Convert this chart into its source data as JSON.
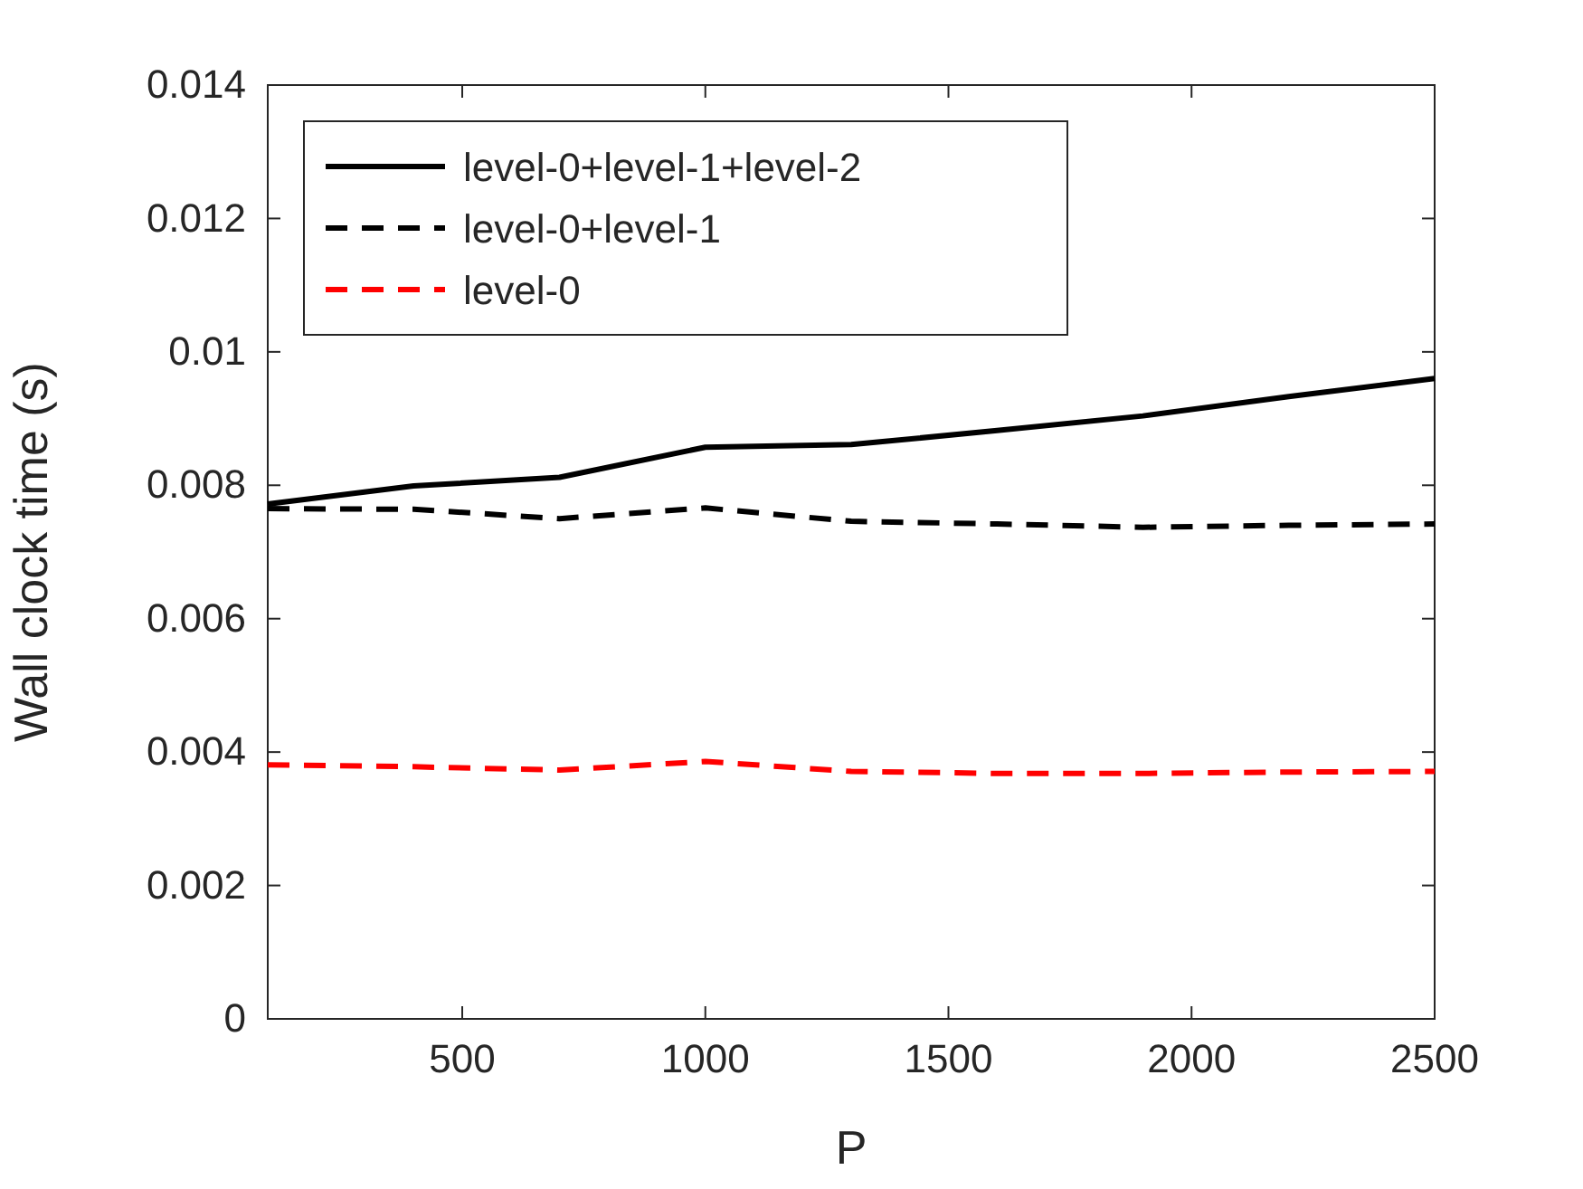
{
  "chart_data": {
    "type": "line",
    "xlabel": "P",
    "ylabel": "Wall clock time (s)",
    "x": [
      100,
      400,
      700,
      1000,
      1300,
      1600,
      1900,
      2200,
      2500
    ],
    "xlim": [
      100,
      2500
    ],
    "xticks": [
      500,
      1000,
      1500,
      2000,
      2500
    ],
    "ylim": [
      0,
      0.014
    ],
    "yticks": [
      0,
      0.002,
      0.004,
      0.006,
      0.008,
      0.01,
      0.012,
      0.014
    ],
    "legend": "top left",
    "grid": false,
    "series": [
      {
        "name": "level-0+level-1+level-2",
        "color": "#000000",
        "line_style": "solid",
        "values": [
          0.00772,
          0.00799,
          0.00812,
          0.00857,
          0.00861,
          0.00882,
          0.00904,
          0.00933,
          0.0096
        ]
      },
      {
        "name": "level-0+level-1",
        "color": "#000000",
        "line_style": "dashed",
        "values": [
          0.00765,
          0.00764,
          0.0075,
          0.00766,
          0.00746,
          0.00742,
          0.00737,
          0.0074,
          0.00742
        ]
      },
      {
        "name": "level-0",
        "color": "#ff0000",
        "line_style": "dashed",
        "values": [
          0.00381,
          0.00378,
          0.00373,
          0.00386,
          0.00371,
          0.00368,
          0.00368,
          0.0037,
          0.00371
        ]
      }
    ]
  }
}
